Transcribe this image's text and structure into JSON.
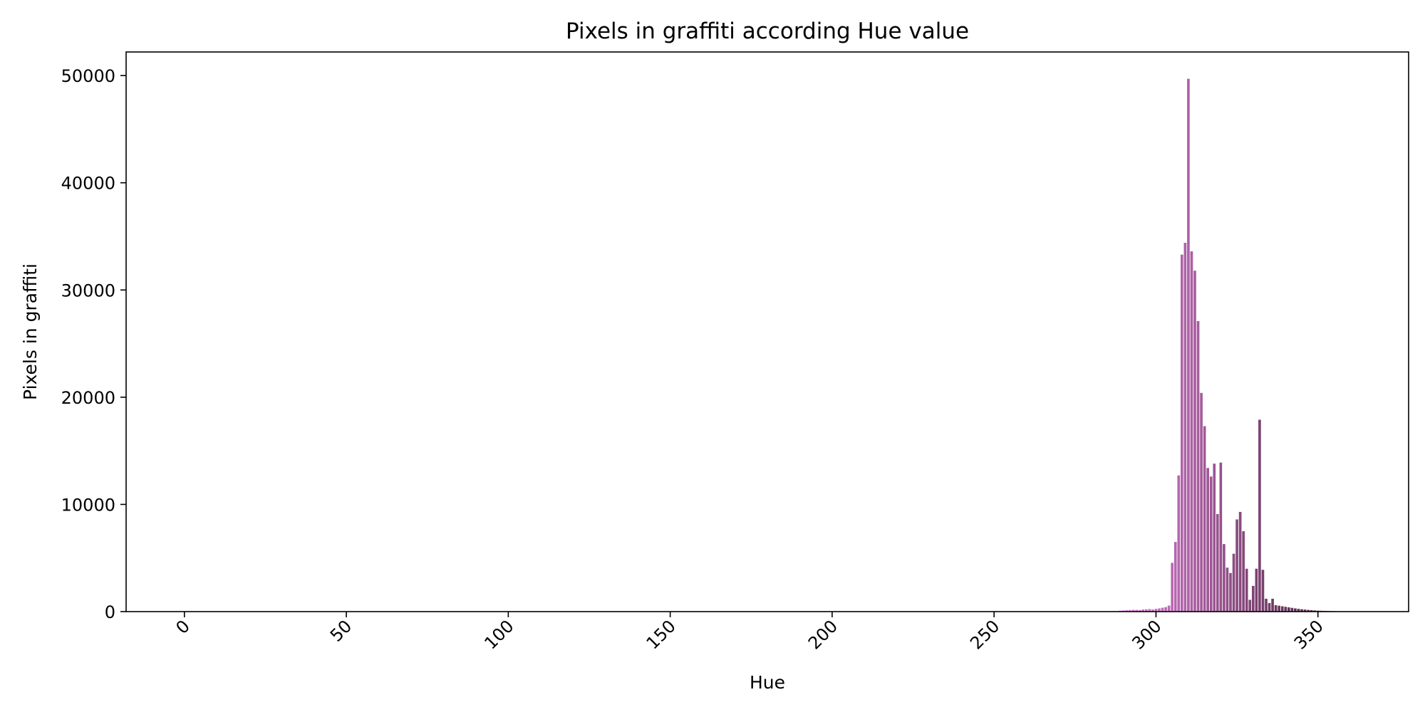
{
  "chart_data": {
    "type": "bar",
    "title": "Pixels in graffiti according Hue value",
    "xlabel": "Hue",
    "ylabel": "Pixels in graffiti",
    "xlim": [
      -18,
      378
    ],
    "ylim": [
      0,
      52200
    ],
    "xticks": [
      0,
      50,
      100,
      150,
      200,
      250,
      300,
      350
    ],
    "yticks": [
      0,
      10000,
      20000,
      30000,
      40000,
      50000
    ],
    "grid": false,
    "legend": "none",
    "bar_color_start": "#de7fd8",
    "bar_color_end": "#3b1a2e",
    "x": [
      289,
      290,
      291,
      292,
      293,
      294,
      295,
      296,
      297,
      298,
      299,
      300,
      301,
      302,
      303,
      304,
      305,
      306,
      307,
      308,
      309,
      310,
      311,
      312,
      313,
      314,
      315,
      316,
      317,
      318,
      319,
      320,
      321,
      322,
      323,
      324,
      325,
      326,
      327,
      328,
      329,
      330,
      331,
      332,
      333,
      334,
      335,
      336,
      337,
      338,
      339,
      340,
      341,
      342,
      343,
      344,
      345,
      346,
      347,
      348,
      349,
      350,
      351,
      352,
      353,
      354,
      355,
      356,
      357,
      358,
      359
    ],
    "values": [
      90,
      110,
      130,
      150,
      170,
      160,
      150,
      200,
      220,
      240,
      200,
      260,
      300,
      360,
      420,
      560,
      4550,
      6500,
      12700,
      33300,
      34400,
      49700,
      33600,
      31800,
      27100,
      20400,
      17300,
      13400,
      12600,
      13800,
      9100,
      13900,
      6300,
      4100,
      3600,
      5400,
      8600,
      9300,
      7500,
      4000,
      1100,
      2400,
      4000,
      17900,
      3900,
      1200,
      800,
      1200,
      600,
      550,
      500,
      450,
      400,
      350,
      300,
      260,
      220,
      190,
      160,
      140,
      110,
      90,
      80,
      70,
      60,
      50,
      40,
      30,
      25,
      20,
      15
    ]
  }
}
